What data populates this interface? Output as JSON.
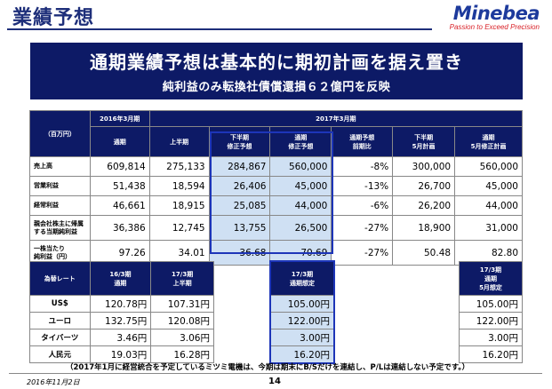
{
  "header": {
    "title": "業績予想",
    "logo_name": "Minebea",
    "logo_tagline": "Passion to Exceed Precision"
  },
  "banner": {
    "main": "通期業績予想は基本的に期初計画を据え置き",
    "sub": "純利益のみ転換社債償還損６２億円を反映"
  },
  "forecast_table": {
    "unit_label": "（百万円）",
    "period_2016": "2016年3月期",
    "period_2017": "2017年3月期",
    "columns": [
      "通期",
      "上半期",
      "下半期\n修正予想",
      "通期\n修正予想",
      "通期予想\n前期比",
      "下半期\n5月計画",
      "通期\n5月修正計画"
    ],
    "rows": [
      {
        "label": "売上高",
        "values": [
          "609,814",
          "275,133",
          "284,867",
          "560,000",
          "-8%",
          "300,000",
          "560,000"
        ]
      },
      {
        "label": "営業利益",
        "values": [
          "51,438",
          "18,594",
          "26,406",
          "45,000",
          "-13%",
          "26,700",
          "45,000"
        ]
      },
      {
        "label": "経常利益",
        "values": [
          "46,661",
          "18,915",
          "25,085",
          "44,000",
          "-6%",
          "26,200",
          "44,000"
        ]
      },
      {
        "label": "親会社株主に帰属\nする当期純利益",
        "values": [
          "36,386",
          "12,745",
          "13,755",
          "26,500",
          "-27%",
          "18,900",
          "31,000"
        ]
      },
      {
        "label": "一株当たり\n純利益（円）",
        "values": [
          "97.26",
          "34.01",
          "36.68",
          "70.69",
          "-27%",
          "50.48",
          "82.80"
        ]
      }
    ]
  },
  "rate_table": {
    "label_header": "為替レート",
    "col_2016": "16/3期\n通期",
    "col_2017_h1": "17/3期\n上半期",
    "col_2017_assume": "17/3期\n通期想定",
    "col_2017_may": "17/3期\n通期\n5月想定",
    "rows": [
      {
        "label": "US$",
        "fy16": "120.78円",
        "h1": "107.31円",
        "assume": "105.00円",
        "may": "105.00円"
      },
      {
        "label": "ユーロ",
        "fy16": "132.75円",
        "h1": "120.08円",
        "assume": "122.00円",
        "may": "122.00円"
      },
      {
        "label": "タイバーツ",
        "fy16": "3.46円",
        "h1": "3.06円",
        "assume": "3.00円",
        "may": "3.00円"
      },
      {
        "label": "人民元",
        "fy16": "19.03円",
        "h1": "16.28円",
        "assume": "16.20円",
        "may": "16.20円"
      }
    ]
  },
  "note": "（2017年1月に経営統合を予定しているミツミ電機は、今期は期末にB/Sだけを連結し、P/Lは連結しない予定です。）",
  "footer": {
    "date": "2016年11月2日",
    "page": "14"
  },
  "colors": {
    "navy": "#0d1a66",
    "highlight_fill": "#cfe0f3",
    "highlight_border": "#1d35b8",
    "logo_red": "#d81f26"
  }
}
